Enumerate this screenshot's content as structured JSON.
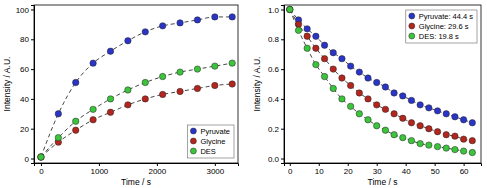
{
  "chart_data": [
    {
      "type": "line",
      "x_label": "Time / s",
      "y_label": "Intensity / A.U.",
      "x": [
        0,
        300,
        600,
        900,
        1200,
        1500,
        1800,
        2100,
        2400,
        2700,
        3000,
        3300
      ],
      "series": [
        {
          "name": "Pyruvate",
          "color": "#2a35c8",
          "marker": "circle",
          "line_style": "dashed",
          "values": [
            1,
            30,
            51,
            64,
            72,
            79,
            85,
            89,
            91,
            93,
            95,
            95
          ]
        },
        {
          "name": "Glycine",
          "color": "#b3261e",
          "marker": "circle",
          "line_style": "dashed",
          "values": [
            1,
            11,
            19,
            26,
            31,
            36,
            40,
            43,
            45,
            47,
            49,
            50
          ]
        },
        {
          "name": "DES",
          "color": "#3cc43c",
          "marker": "circle",
          "line_style": "dashed",
          "values": [
            1,
            14,
            25,
            33,
            40,
            46,
            51,
            55,
            58,
            60,
            62,
            64
          ]
        }
      ],
      "xlim": [
        -120,
        3400
      ],
      "ylim": [
        -3,
        103
      ],
      "xticks": [
        0,
        1000,
        2000,
        3000
      ],
      "yticks": [
        0,
        20,
        40,
        60,
        80,
        100
      ],
      "legend": "lower right"
    },
    {
      "type": "line",
      "x_label": "Time / s",
      "y_label": "Intensity / A.U.",
      "x": [
        0,
        3,
        6,
        9,
        12,
        15,
        18,
        21,
        24,
        27,
        30,
        33,
        36,
        39,
        42,
        45,
        48,
        51,
        54,
        57,
        60,
        63
      ],
      "series": [
        {
          "name": "Pyruvate: 44.4 s",
          "color": "#2a35c8",
          "marker": "circle",
          "line_style": "dashed",
          "values": [
            1.0,
            0.93,
            0.87,
            0.82,
            0.76,
            0.71,
            0.67,
            0.62,
            0.58,
            0.54,
            0.51,
            0.48,
            0.44,
            0.42,
            0.39,
            0.36,
            0.34,
            0.32,
            0.3,
            0.28,
            0.26,
            0.24
          ]
        },
        {
          "name": "Glycine: 29.6 s",
          "color": "#b3261e",
          "marker": "circle",
          "line_style": "dashed",
          "values": [
            1.0,
            0.9,
            0.82,
            0.74,
            0.67,
            0.6,
            0.54,
            0.49,
            0.44,
            0.4,
            0.36,
            0.33,
            0.3,
            0.27,
            0.24,
            0.22,
            0.2,
            0.18,
            0.16,
            0.15,
            0.13,
            0.12
          ]
        },
        {
          "name": "DES: 19.8 s",
          "color": "#3cc43c",
          "marker": "circle",
          "line_style": "dashed",
          "values": [
            1.0,
            0.86,
            0.74,
            0.63,
            0.55,
            0.47,
            0.4,
            0.35,
            0.3,
            0.26,
            0.22,
            0.19,
            0.16,
            0.14,
            0.12,
            0.1,
            0.09,
            0.08,
            0.07,
            0.06,
            0.05,
            0.04
          ]
        }
      ],
      "xlim": [
        -2,
        66
      ],
      "ylim": [
        -0.03,
        1.03
      ],
      "xticks": [
        0,
        10,
        20,
        30,
        40,
        50,
        60
      ],
      "yticks": [
        {
          "value": 0,
          "label": "0.0"
        },
        0.2,
        0.4,
        0.6,
        0.8,
        {
          "value": 1,
          "label": "1.0"
        }
      ],
      "legend": "upper right"
    }
  ]
}
